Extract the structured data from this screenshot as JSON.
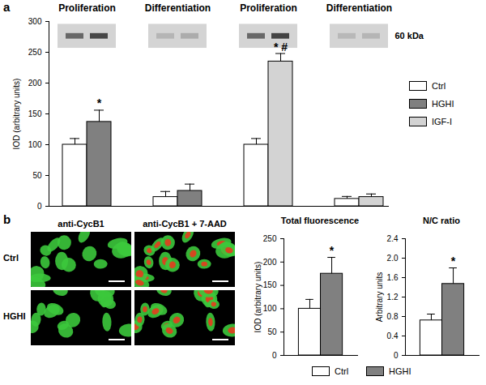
{
  "chart_data": [
    {
      "panel_label": "a",
      "type": "bar",
      "categories": [
        "Proliferation",
        "Differentiation",
        "Proliferation",
        "Differentiation"
      ],
      "series": [
        {
          "name": "Ctrl",
          "color": "#ffffff",
          "values": [
            100,
            15,
            100,
            12
          ],
          "errors": [
            10,
            9,
            10,
            4
          ]
        },
        {
          "name": "HGHI",
          "color": "#808080",
          "values": [
            137,
            25,
            null,
            null
          ],
          "errors": [
            19,
            11,
            null,
            null
          ]
        },
        {
          "name": "IGF-I",
          "color": "#d3d3d3",
          "values": [
            null,
            null,
            235,
            15
          ],
          "errors": [
            null,
            null,
            13,
            5
          ]
        }
      ],
      "ylabel": "IOD (arbitrary units)",
      "ylim": [
        0,
        300
      ],
      "yticks": [
        0,
        50,
        100,
        150,
        200,
        250,
        300
      ],
      "tick_labels": "y",
      "legend": "right",
      "blot_label": "60 kDa",
      "annotations": [
        {
          "text": "*",
          "series": "HGHI",
          "position": 0
        },
        {
          "text": "* #",
          "series": "IGF-I",
          "position": 2
        }
      ]
    },
    {
      "type": "bar",
      "title": "Total fluorescence",
      "categories": [
        null
      ],
      "series": [
        {
          "name": "Ctrl",
          "color": "#ffffff",
          "values": [
            100
          ],
          "errors": [
            20
          ]
        },
        {
          "name": "HGHI",
          "color": "#808080",
          "values": [
            175
          ],
          "errors": [
            35
          ]
        }
      ],
      "ylabel": "IOD (arbitrary units)",
      "ylim": [
        0,
        250
      ],
      "yticks": [
        0,
        50,
        100,
        150,
        200,
        250
      ],
      "tick_labels": "y",
      "legend": "bottom",
      "annotations": [
        {
          "text": "*",
          "series": "HGHI",
          "position": 0
        }
      ]
    },
    {
      "type": "bar",
      "title": "N/C ratio",
      "categories": [
        null
      ],
      "series": [
        {
          "name": "Ctrl",
          "color": "#ffffff",
          "values": [
            0.72
          ],
          "errors": [
            0.13
          ]
        },
        {
          "name": "HGHI",
          "color": "#808080",
          "values": [
            1.47
          ],
          "errors": [
            0.33
          ]
        }
      ],
      "ylabel": "Arbitrary units",
      "ylim": [
        0,
        2.4
      ],
      "yticks": [
        0,
        0.4,
        0.8,
        1.2,
        1.6,
        {
          "value": 2,
          "label": "2.0"
        },
        2.4
      ],
      "tick_labels": "y",
      "legend": "bottom",
      "annotations": [
        {
          "text": "*",
          "series": "HGHI",
          "position": 0
        }
      ]
    }
  ],
  "micrographs": {
    "panel_label": "b",
    "columns": [
      "anti-CycB1",
      "anti-CycB1 + 7-AAD"
    ],
    "rows": [
      "Ctrl",
      "HGHI"
    ]
  }
}
